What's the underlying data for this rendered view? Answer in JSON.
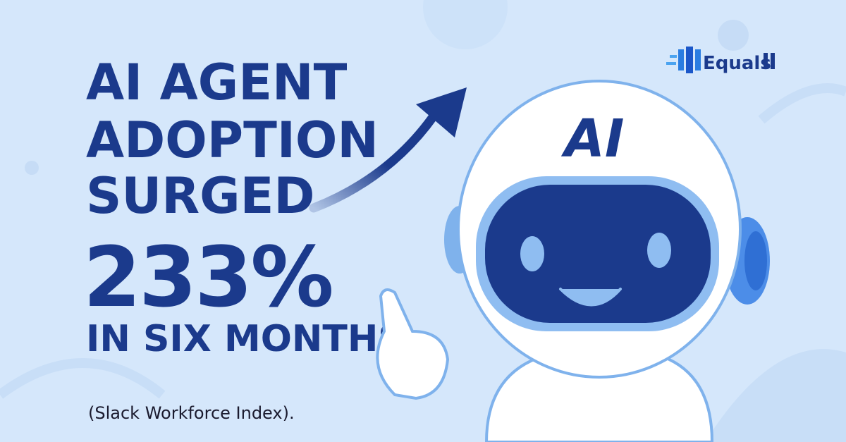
{
  "headline": {
    "lines": [
      "AI AGENT",
      "ADOPTION",
      "SURGED"
    ],
    "figure": "233%",
    "period": "IN SIX MONTHS"
  },
  "source": "(Slack Workforce Index).",
  "logo": {
    "name": "Equals"
  },
  "robot": {
    "badge": "AI"
  }
}
